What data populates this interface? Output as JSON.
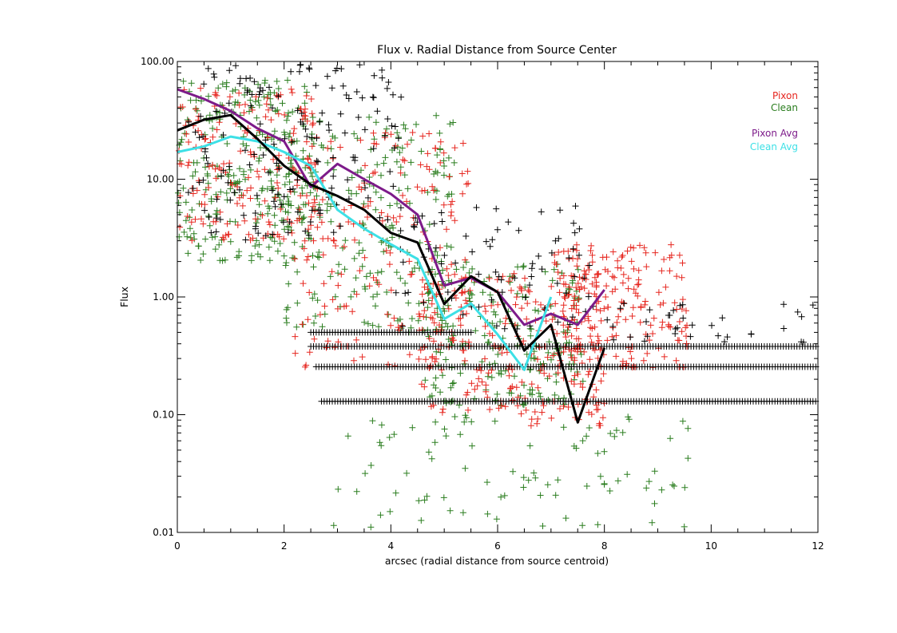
{
  "chart_data": {
    "type": "scatter",
    "title": "Flux v. Radial Distance from Source Center",
    "xlabel": "arcsec (radial distance from source centroid)",
    "ylabel": "Flux",
    "xlim": [
      0,
      12
    ],
    "ylim": [
      0.01,
      100
    ],
    "yscale": "log",
    "grid": false,
    "legend_position": "top-right",
    "x_ticks": [
      0,
      2,
      4,
      6,
      8,
      10,
      12
    ],
    "x_tick_labels": [
      "0",
      "2",
      "4",
      "6",
      "8",
      "10",
      "12"
    ],
    "y_ticks": [
      0.01,
      0.1,
      1,
      10,
      100
    ],
    "y_tick_labels": [
      "0.01",
      "0.10",
      "1.00",
      "10.00",
      "100.00"
    ],
    "legend": [
      {
        "label": "Pixon",
        "color": "#e6261f"
      },
      {
        "label": "Clean",
        "color": "#2a7d1e"
      },
      {
        "label": "Pixon Avg",
        "color": "#7d1b8a"
      },
      {
        "label": "Clean Avg",
        "color": "#3de0e6"
      }
    ],
    "colors": {
      "pixon": "#e6261f",
      "clean": "#2a7d1e",
      "black_points": "#000000",
      "pixon_avg": "#7d1b8a",
      "clean_avg": "#3de0e6",
      "black_avg": "#000000"
    },
    "lines": [
      {
        "name": "Pixon Avg",
        "color": "#7d1b8a",
        "x": [
          0,
          0.5,
          1,
          1.5,
          2,
          2.5,
          3,
          3.5,
          4,
          4.5,
          5,
          5.5,
          6,
          6.5,
          7,
          7.5,
          8
        ],
        "y": [
          58,
          48,
          38,
          27,
          21,
          8.6,
          13.5,
          10,
          7.5,
          5,
          1.25,
          1.45,
          1.1,
          0.58,
          0.72,
          0.58,
          1.15
        ]
      },
      {
        "color": "#3de0e6",
        "x": [
          0,
          0.5,
          1,
          1.5,
          2,
          2.5,
          3,
          3.5,
          4,
          4.5,
          5,
          5.5,
          6,
          6.5,
          7
        ],
        "y": [
          17,
          19,
          23,
          21,
          17,
          13,
          5.5,
          3.8,
          2.8,
          2.1,
          0.65,
          0.88,
          0.48,
          0.24,
          1.0
        ]
      },
      {
        "color": "#000000",
        "x": [
          0,
          0.5,
          1,
          1.5,
          2,
          2.5,
          3,
          3.5,
          4,
          4.5,
          5,
          5.5,
          6,
          6.5,
          7,
          7.5,
          8
        ],
        "y": [
          26,
          32,
          35,
          22,
          13,
          9,
          7.2,
          5.5,
          3.5,
          2.9,
          0.87,
          1.5,
          1.1,
          0.35,
          0.58,
          0.086,
          0.37
        ]
      }
    ],
    "scatter_regions": [
      {
        "group": "clean",
        "x_range": [
          0,
          2.6
        ],
        "y_range": [
          2,
          70
        ],
        "count": 260
      },
      {
        "group": "clean",
        "x_range": [
          2.0,
          5.2
        ],
        "y_range": [
          0.5,
          35
        ],
        "count": 230
      },
      {
        "group": "clean",
        "x_range": [
          4.6,
          7.6
        ],
        "y_range": [
          0.12,
          2.0
        ],
        "count": 200
      },
      {
        "group": "clean",
        "x_range": [
          2.9,
          9.6
        ],
        "y_range": [
          0.011,
          0.12
        ],
        "count": 95
      },
      {
        "group": "pixon",
        "x_range": [
          0,
          2.6
        ],
        "y_range": [
          3,
          60
        ],
        "count": 170
      },
      {
        "group": "pixon",
        "x_range": [
          2.2,
          5.5
        ],
        "y_range": [
          0.25,
          25
        ],
        "count": 200
      },
      {
        "group": "pixon",
        "x_range": [
          4.5,
          8.0
        ],
        "y_range": [
          0.08,
          1.6
        ],
        "count": 240
      },
      {
        "group": "pixon",
        "x_range": [
          7.0,
          9.6
        ],
        "y_range": [
          0.25,
          2.8
        ],
        "count": 200
      },
      {
        "group": "black_points",
        "x_range": [
          0.2,
          4.2
        ],
        "y_range": [
          3,
          95
        ],
        "count": 170
      },
      {
        "group": "black_points",
        "x_range": [
          4.0,
          7.8
        ],
        "y_range": [
          0.5,
          6
        ],
        "count": 80
      },
      {
        "group": "black_points",
        "x_range": [
          8.0,
          12.0
        ],
        "y_range": [
          0.4,
          0.9
        ],
        "count": 35
      }
    ],
    "horizontal_point_bands": [
      {
        "group": "black_points",
        "y": 0.13,
        "x_range": [
          2.7,
          12.0
        ]
      },
      {
        "group": "black_points",
        "y": 0.255,
        "x_range": [
          2.6,
          12.0
        ]
      },
      {
        "group": "black_points",
        "y": 0.38,
        "x_range": [
          2.5,
          12.0
        ]
      },
      {
        "group": "black_points",
        "y": 0.5,
        "x_range": [
          2.5,
          5.5
        ]
      }
    ]
  }
}
